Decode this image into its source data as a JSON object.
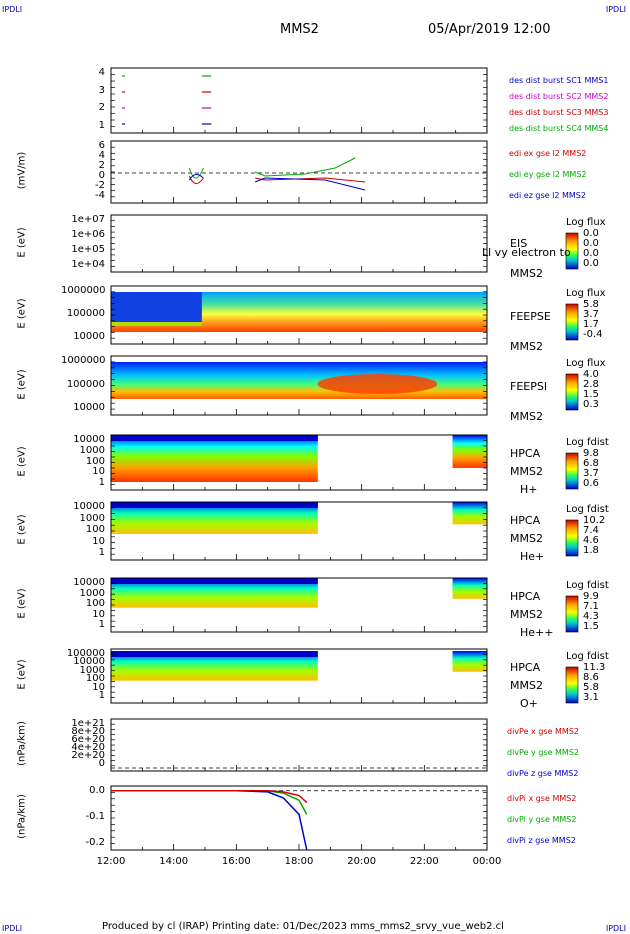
{
  "header": {
    "corner_tl": "IPDLI",
    "corner_tr": "IPDLI",
    "corner_bl": "IPDLI",
    "corner_br": "IPDLI",
    "mission": "MMS2",
    "date": "05/Apr/2019 12:00"
  },
  "footer": {
    "text": "Produced by cl (IRAP)   Printing date: 01/Dec/2023   mms_mms2_srvy_vue_web2.cl"
  },
  "x_axis": {
    "ticks": [
      "12:00",
      "14:00",
      "16:00",
      "18:00",
      "20:00",
      "22:00",
      "00:00"
    ]
  },
  "panels": [
    {
      "id": "burst",
      "yticks": [
        "4",
        "3",
        "2",
        "1"
      ],
      "legend": [
        {
          "text": "des dist burst SC1 MMS1",
          "color": "#0000cc"
        },
        {
          "text": "des dist burst SC2 MMS2",
          "color": "#cc00cc"
        },
        {
          "text": "des dist burst SC3 MMS3",
          "color": "#cc0000"
        },
        {
          "text": "des dist burst SC4 MMS4",
          "color": "#00aa00"
        }
      ]
    },
    {
      "id": "efield",
      "ylabel": "(mV/m)",
      "yticks": [
        "6",
        "4",
        "2",
        "0",
        "-2",
        "-4"
      ],
      "legend": [
        {
          "text": "edi ex gse l2 MMS2",
          "color": "#cc0000"
        },
        {
          "text": "edi ey gse l2 MMS2",
          "color": "#00aa00"
        },
        {
          "text": "edi ez gse l2 MMS2",
          "color": "#0000cc"
        }
      ]
    },
    {
      "id": "eis",
      "ylabel": "E (eV)",
      "yticks": [
        "1e+07",
        "1e+06",
        "1e+05",
        "1e+04"
      ],
      "side": [
        "EIS",
        "MMS2"
      ],
      "overlay": "Ll vy electron to",
      "cb_title": "Log flux",
      "cb_ticks": [
        "0.0",
        "0.0",
        "0.0",
        "0.0"
      ]
    },
    {
      "id": "feepse",
      "ylabel": "E (eV)",
      "yticks": [
        "1000000",
        "100000",
        "10000"
      ],
      "side": [
        "FEEPSE",
        "MMS2"
      ],
      "cb_title": "Log flux",
      "cb_ticks": [
        "5.8",
        "3.7",
        "1.7",
        "-0.4"
      ]
    },
    {
      "id": "feepsi",
      "ylabel": "E (eV)",
      "yticks": [
        "1000000",
        "100000",
        "10000"
      ],
      "side": [
        "FEEPSI",
        "MMS2"
      ],
      "cb_title": "Log flux",
      "cb_ticks": [
        "4.0",
        "2.8",
        "1.5",
        "0.3"
      ]
    },
    {
      "id": "hpca_h",
      "ylabel": "E (eV)",
      "yticks": [
        "10000",
        "1000",
        "100",
        "10",
        "1"
      ],
      "side": [
        "HPCA",
        "MMS2",
        "H+"
      ],
      "cb_title": "Log fdist",
      "cb_ticks": [
        "9.8",
        "6.8",
        "3.7",
        "0.6"
      ]
    },
    {
      "id": "hpca_he",
      "ylabel": "E (eV)",
      "yticks": [
        "10000",
        "1000",
        "100",
        "10",
        "1"
      ],
      "side": [
        "HPCA",
        "MMS2",
        "He+"
      ],
      "cb_title": "Log fdist",
      "cb_ticks": [
        "10.2",
        "7.4",
        "4.6",
        "1.8"
      ]
    },
    {
      "id": "hpca_hepp",
      "ylabel": "E (eV)",
      "yticks": [
        "10000",
        "1000",
        "100",
        "10",
        "1"
      ],
      "side": [
        "HPCA",
        "MMS2",
        "He++"
      ],
      "cb_title": "Log fdist",
      "cb_ticks": [
        "9.9",
        "7.1",
        "4.3",
        "1.5"
      ]
    },
    {
      "id": "hpca_o",
      "ylabel": "E (eV)",
      "yticks": [
        "100000",
        "10000",
        "1000",
        "100",
        "10",
        "1"
      ],
      "side": [
        "HPCA",
        "MMS2",
        "O+"
      ],
      "cb_title": "Log fdist",
      "cb_ticks": [
        "11.3",
        "8.6",
        "5.8",
        "3.1"
      ]
    },
    {
      "id": "divpe",
      "ylabel": "(nPa/km)",
      "yticks": [
        "1e+21",
        "8e+20",
        "6e+20",
        "4e+20",
        "2e+20",
        "0"
      ],
      "legend": [
        {
          "text": "divPe x gse MMS2",
          "color": "#cc0000"
        },
        {
          "text": "divPe y gse MMS2",
          "color": "#00aa00"
        },
        {
          "text": "divPe z gse MMS2",
          "color": "#0000cc"
        }
      ]
    },
    {
      "id": "divpi",
      "ylabel": "(nPa/km)",
      "yticks": [
        "0.0",
        "-0.1",
        "-0.2"
      ],
      "legend": [
        {
          "text": "divPi x gse MMS2",
          "color": "#cc0000"
        },
        {
          "text": "divPi y gse MMS2",
          "color": "#00aa00"
        },
        {
          "text": "divPi z gse MMS2",
          "color": "#0000cc"
        }
      ]
    }
  ],
  "chart_data": {
    "type": "line",
    "x_range": [
      "12:00",
      "00:00"
    ],
    "series": [
      {
        "name": "divPi z gse MMS2",
        "x": [
          "12:00",
          "14:00",
          "16:00",
          "17:00",
          "17:30",
          "18:00",
          "18:15"
        ],
        "y": [
          0.0,
          0.0,
          0.0,
          -0.005,
          -0.03,
          -0.1,
          -0.25
        ]
      },
      {
        "name": "divPi y gse MMS2",
        "x": [
          "12:00",
          "14:00",
          "16:00",
          "17:00",
          "17:30",
          "18:00",
          "18:15"
        ],
        "y": [
          0.0,
          0.0,
          0.0,
          0.0,
          -0.01,
          -0.04,
          -0.1
        ]
      },
      {
        "name": "divPi x gse MMS2",
        "x": [
          "12:00",
          "14:00",
          "16:00",
          "17:00",
          "17:30",
          "18:00",
          "18:15"
        ],
        "y": [
          0.0,
          0.0,
          0.0,
          0.0,
          -0.005,
          -0.02,
          -0.05
        ]
      }
    ],
    "ylim": [
      -0.25,
      0.02
    ]
  }
}
